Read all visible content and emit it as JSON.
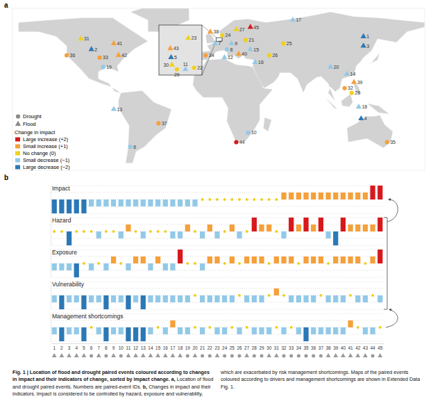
{
  "chart_data": [
    {
      "type": "map",
      "panel": "a",
      "xlim": [
        -170,
        180
      ],
      "ylim": [
        -58,
        80
      ],
      "tick_labels": false,
      "inset": {
        "xlim": [
          3,
          8
        ],
        "ylim": [
          52,
          55
        ]
      },
      "symbols": [
        {
          "label": "Drought",
          "marker": "circle"
        },
        {
          "label": "Flood",
          "marker": "triangle"
        }
      ],
      "change_legend": {
        "title": "Change in impact",
        "items": [
          {
            "value": 2,
            "label": "Large increase (+2)",
            "color": "#d7191c"
          },
          {
            "value": 1,
            "label": "Small increase (+1)",
            "color": "#f5a03a"
          },
          {
            "value": 0,
            "label": "No change (0)",
            "color": "#f0d01e"
          },
          {
            "value": -1,
            "label": "Small decrease (−1)",
            "color": "#92c9e8"
          },
          {
            "value": -2,
            "label": "Large decrease (−2)",
            "color": "#2b78b6"
          }
        ]
      },
      "events": [
        {
          "id": 1,
          "lon": 128,
          "lat": 56
        },
        {
          "id": 2,
          "lon": -103,
          "lat": 45
        },
        {
          "id": 3,
          "lon": 128,
          "lat": 48
        },
        {
          "id": 4,
          "lon": 126,
          "lat": -14
        },
        {
          "id": 5,
          "lon": 4.3,
          "lat": 53.0,
          "inset": true
        },
        {
          "id": 6,
          "lon": -70,
          "lat": -38
        },
        {
          "id": 7,
          "lon": 2,
          "lat": 50
        },
        {
          "id": 8,
          "lon": 12,
          "lat": 45
        },
        {
          "id": 9,
          "lon": 16,
          "lat": 50
        },
        {
          "id": 10,
          "lon": 30,
          "lat": -26
        },
        {
          "id": 11,
          "lon": 6.15,
          "lat": 52.2,
          "inset": true
        },
        {
          "id": 12,
          "lon": 10,
          "lat": 38
        },
        {
          "id": 13,
          "lon": -84,
          "lat": -6
        },
        {
          "id": 14,
          "lon": 114,
          "lat": 24
        },
        {
          "id": 15,
          "lon": 32,
          "lat": 45
        },
        {
          "id": 16,
          "lon": 36,
          "lat": 34
        },
        {
          "id": 17,
          "lon": 68,
          "lat": 70
        },
        {
          "id": 18,
          "lon": 124,
          "lat": -4
        },
        {
          "id": 19,
          "lon": -93,
          "lat": 30
        },
        {
          "id": 20,
          "lon": 100,
          "lat": 30
        },
        {
          "id": 21,
          "lon": 28,
          "lat": 53
        },
        {
          "id": 22,
          "lon": 7.26,
          "lat": 52.3,
          "inset": true
        },
        {
          "id": 23,
          "lon": 6.5,
          "lat": 54.3,
          "inset": true
        },
        {
          "id": 24,
          "lon": 8,
          "lat": 57
        },
        {
          "id": 25,
          "lon": 60,
          "lat": 50
        },
        {
          "id": 26,
          "lon": 48,
          "lat": 40
        },
        {
          "id": 27,
          "lon": 20,
          "lat": 62
        },
        {
          "id": 28,
          "lon": 118,
          "lat": 8
        },
        {
          "id": 29,
          "lon": 5.04,
          "lat": 52.2,
          "inset": true
        },
        {
          "id": 30,
          "lon": 4.4,
          "lat": 52.5,
          "inset": true
        },
        {
          "id": 31,
          "lon": -112,
          "lat": 54
        },
        {
          "id": 32,
          "lon": 112,
          "lat": 12
        },
        {
          "id": 33,
          "lon": -96,
          "lat": 38
        },
        {
          "id": 34,
          "lon": -6,
          "lat": 40
        },
        {
          "id": 35,
          "lon": 148,
          "lat": -34
        },
        {
          "id": 36,
          "lon": -124,
          "lat": 40
        },
        {
          "id": 37,
          "lon": -46,
          "lat": -18
        },
        {
          "id": 38,
          "lon": -2,
          "lat": 60
        },
        {
          "id": 39,
          "lon": 120,
          "lat": 17
        },
        {
          "id": 40,
          "lon": 22,
          "lat": 41
        },
        {
          "id": 41,
          "lon": -84,
          "lat": 50
        },
        {
          "id": 42,
          "lon": -80,
          "lat": 40
        },
        {
          "id": 43,
          "lon": 4.2,
          "lat": 53.6,
          "inset": true
        },
        {
          "id": 44,
          "lon": 20,
          "lat": -34
        },
        {
          "id": 45,
          "lon": 32,
          "lat": 64
        }
      ]
    },
    {
      "type": "bar",
      "panel": "b",
      "ylim": [
        -2,
        2
      ],
      "yticks": [
        -2,
        -1,
        0,
        1,
        2
      ],
      "grid": true,
      "tick_labels": "x",
      "categories": [
        1,
        2,
        3,
        4,
        5,
        6,
        7,
        8,
        9,
        10,
        11,
        12,
        13,
        14,
        15,
        16,
        17,
        18,
        19,
        20,
        21,
        22,
        23,
        24,
        25,
        26,
        27,
        28,
        29,
        30,
        31,
        32,
        33,
        34,
        35,
        36,
        37,
        38,
        39,
        40,
        41,
        42,
        43,
        44,
        45
      ],
      "markers": [
        "triangle",
        "triangle",
        "triangle",
        "triangle",
        "triangle",
        "circle",
        "triangle",
        "circle",
        "triangle",
        "circle",
        "triangle",
        "triangle",
        "triangle",
        "triangle",
        "triangle",
        "triangle",
        "triangle",
        "triangle",
        "circle",
        "triangle",
        "circle",
        "circle",
        "triangle",
        "circle",
        "circle",
        "circle",
        "triangle",
        "circle",
        "circle",
        "triangle",
        "triangle",
        "circle",
        "circle",
        "circle",
        "circle",
        "circle",
        "circle",
        "triangle",
        "triangle",
        "triangle",
        "triangle",
        "triangle",
        "triangle",
        "circle",
        "triangle"
      ],
      "series": [
        {
          "name": "Impact",
          "values": [
            -2,
            -2,
            -2,
            -2,
            -2,
            -1,
            -1,
            -1,
            -1,
            -1,
            -1,
            -1,
            -1,
            -1,
            -1,
            -1,
            -1,
            -1,
            -1,
            -1,
            0,
            0,
            0,
            0,
            0,
            0,
            0,
            0,
            0,
            0,
            0,
            1,
            1,
            1,
            1,
            1,
            1,
            1,
            1,
            1,
            1,
            1,
            1,
            2,
            2
          ]
        },
        {
          "name": "Hazard",
          "values": [
            0,
            0,
            -2,
            0,
            0,
            0,
            -1,
            0,
            0,
            -1,
            1,
            0,
            -1,
            0,
            0,
            0,
            -1,
            -1,
            1,
            0,
            -1,
            1,
            -1,
            0,
            1,
            -1,
            0,
            2,
            1,
            1,
            0,
            -1,
            2,
            1,
            2,
            1,
            2,
            -1,
            -2,
            2,
            1,
            1,
            1,
            1,
            2
          ]
        },
        {
          "name": "Exposure",
          "values": [
            -1,
            -1,
            -1,
            -2,
            0,
            -1,
            0,
            -1,
            1,
            0,
            -1,
            1,
            1,
            -1,
            1,
            -1,
            -1,
            2,
            0,
            0,
            -1,
            1,
            1,
            0,
            1,
            0,
            1,
            1,
            1,
            0,
            1,
            1,
            1,
            0,
            1,
            1,
            1,
            0,
            1,
            1,
            1,
            1,
            0,
            1,
            2
          ]
        },
        {
          "name": "Vulnerability",
          "values": [
            -1,
            -2,
            -1,
            -1,
            -2,
            -1,
            -1,
            -2,
            -1,
            -1,
            -2,
            -1,
            -2,
            -1,
            -1,
            -1,
            -1,
            -1,
            -1,
            0,
            -1,
            -1,
            -1,
            -1,
            -1,
            0,
            -1,
            -1,
            -1,
            0,
            1,
            0,
            -1,
            -1,
            -1,
            -1,
            0,
            -1,
            -1,
            -1,
            0,
            -1,
            -1,
            0,
            -1
          ]
        },
        {
          "name": "Management shortcomings",
          "values": [
            -1,
            -2,
            -1,
            -1,
            -2,
            0,
            -1,
            -2,
            -1,
            -1,
            -2,
            -2,
            -2,
            -1,
            0,
            -1,
            1,
            -1,
            -1,
            0,
            -1,
            0,
            -1,
            -1,
            0,
            -1,
            0,
            -1,
            -1,
            -1,
            0,
            -1,
            0,
            -1,
            -2,
            -1,
            -1,
            -1,
            -1,
            -1,
            1,
            0,
            -1,
            -1,
            0
          ]
        }
      ]
    }
  ],
  "caption": {
    "title": "Fig. 1 | Location of flood and drought paired events coloured according to changes in impact and their indicators of change, sorted by impact change.",
    "parts": [
      {
        "label": "a,",
        "text": "Location of flood and drought paired events. Numbers are paired-event IDs."
      },
      {
        "label": "b,",
        "text": "Changes in impact and their indicators. Impact is considered to be controlled by hazard, exposure and vulnerability, which are exacerbated by risk management shortcomings. Maps of the paired events coloured according to drivers and management shortcomings are shown in Extended Data Fig. 1."
      }
    ]
  }
}
